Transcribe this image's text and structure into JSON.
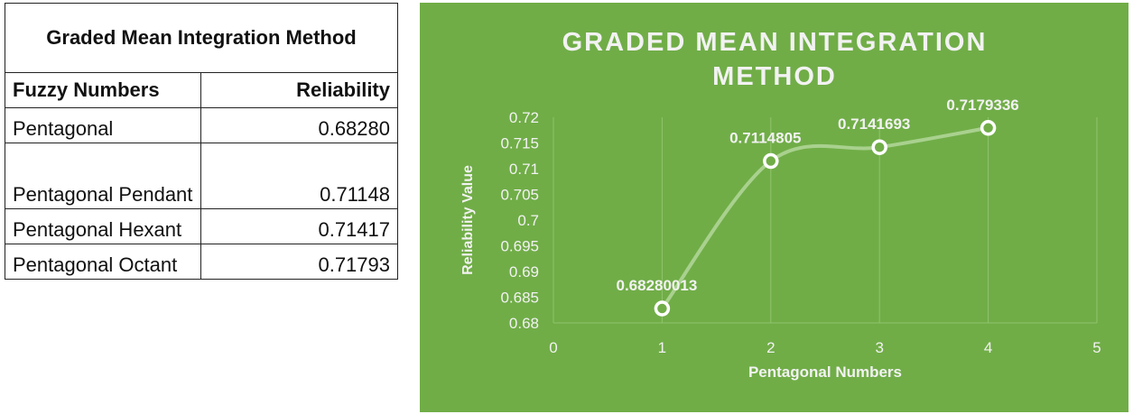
{
  "table": {
    "title": "Graded Mean Integration Method",
    "header": [
      "Fuzzy Numbers",
      "Reliability"
    ],
    "rows": [
      [
        "Pentagonal",
        "0.68280"
      ],
      [
        "Pentagonal Pendant",
        "0.71148"
      ],
      [
        "Pentagonal Hexant",
        "0.71417"
      ],
      [
        "Pentagonal Octant",
        "0.71793"
      ]
    ]
  },
  "chart_data": {
    "type": "line",
    "title": "GRADED MEAN INTEGRATION METHOD",
    "x_label": "Pentagonal Numbers",
    "y_label": "Reliability Value",
    "x": [
      1,
      2,
      3,
      4
    ],
    "values": [
      0.68280013,
      0.7114805,
      0.7141693,
      0.7179336
    ],
    "color": "#a9d18e",
    "background": "#70ad47",
    "grid": true,
    "xlim": [
      0,
      5
    ],
    "xticks": [
      0,
      1,
      2,
      3,
      4,
      5
    ],
    "ylim": [
      0.68,
      0.72
    ],
    "yticks": [
      0.68,
      0.685,
      0.69,
      0.695,
      0.7,
      0.705,
      0.71,
      0.715,
      0.72
    ]
  }
}
